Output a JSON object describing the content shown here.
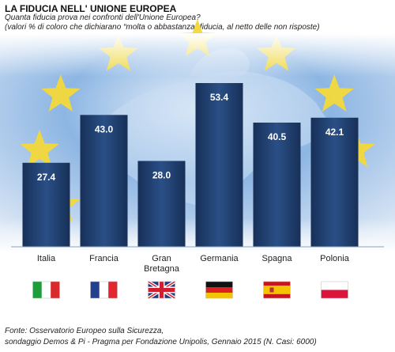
{
  "header": {
    "title": "LA FIDUCIA NELL' UNIONE EUROPEA",
    "subtitle": "Quanta fiducia prova nei confronti dell'Unione Europea?",
    "note": "(valori % di coloro che dichiarano “molta o abbastanza” fiducia, al netto delle non risposte)"
  },
  "footer": {
    "source_line1": "Fonte: Osservatorio Europeo sulla Sicurezza,",
    "source_line2": "sondaggio Demos & Pi - Pragma per Fondazione Unipolis, Gennaio 2015 (N. Casi: 6000)"
  },
  "colors": {
    "bar": "#1f3a6b",
    "bar_light": "#2d5694",
    "sky_top": "#ffffff",
    "sky_mid": "#6f9fd8",
    "sky_bottom": "#e9f0f9",
    "star": "#f3d93b"
  },
  "chart_data": {
    "type": "bar",
    "categories": [
      "Italia",
      "Francia",
      "Gran Bretagna",
      "Germania",
      "Spagna",
      "Polonia"
    ],
    "category_lines": [
      [
        "Italia"
      ],
      [
        "Francia"
      ],
      [
        "Gran",
        "Bretagna"
      ],
      [
        "Germania"
      ],
      [
        "Spagna"
      ],
      [
        "Polonia"
      ]
    ],
    "values": [
      27.4,
      43.0,
      28.0,
      53.4,
      40.5,
      42.1
    ],
    "value_labels": [
      "27.4",
      "43.0",
      "28.0",
      "53.4",
      "40.5",
      "42.1"
    ],
    "ylim": [
      0,
      65
    ],
    "grid": false,
    "flags": [
      "italy-flag-icon",
      "france-flag-icon",
      "uk-flag-icon",
      "germany-flag-icon",
      "spain-flag-icon",
      "poland-flag-icon"
    ]
  }
}
